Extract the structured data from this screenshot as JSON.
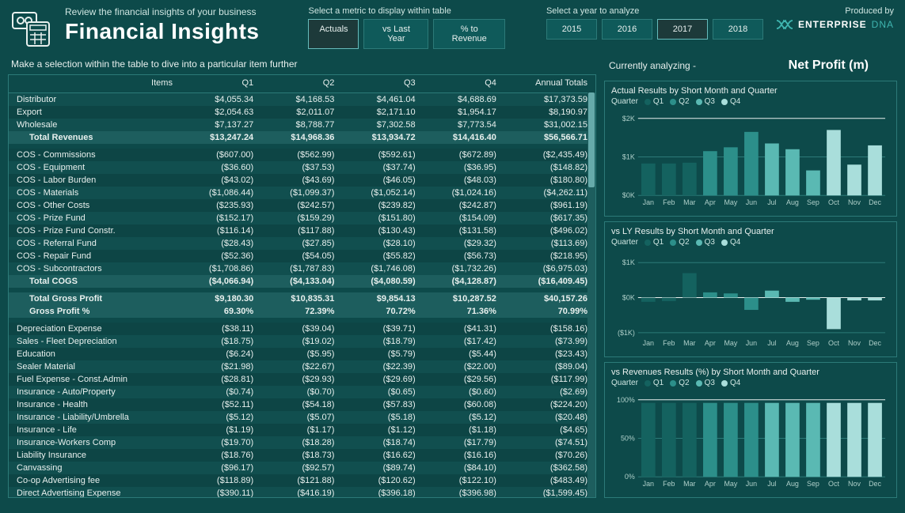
{
  "header": {
    "subtitle": "Review the financial insights of your business",
    "title": "Financial Insights",
    "metric_slicer": {
      "label": "Select a metric to display within table",
      "options": [
        "Actuals",
        "vs Last Year",
        "% to Revenue"
      ],
      "active_index": 0
    },
    "year_slicer": {
      "label": "Select a year to analyze",
      "options": [
        "2015",
        "2016",
        "2017",
        "2018"
      ],
      "active_index": 2
    },
    "produced_label": "Produced by",
    "brand_main": "ENTERPRISE",
    "brand_accent": "DNA"
  },
  "instruction": "Make a selection within the table to dive into a particular item further",
  "table": {
    "columns": [
      "Items",
      "Q1",
      "Q2",
      "Q3",
      "Q4",
      "Annual Totals"
    ],
    "rows": [
      {
        "type": "data",
        "cells": [
          "Distributor",
          "$4,055.34",
          "$4,168.53",
          "$4,461.04",
          "$4,688.69",
          "$17,373.59"
        ]
      },
      {
        "type": "data",
        "cells": [
          "Export",
          "$2,054.63",
          "$2,011.07",
          "$2,171.10",
          "$1,954.17",
          "$8,190.97"
        ]
      },
      {
        "type": "data",
        "cells": [
          "Wholesale",
          "$7,137.27",
          "$8,788.77",
          "$7,302.58",
          "$7,773.54",
          "$31,002.15"
        ]
      },
      {
        "type": "total",
        "cells": [
          "Total Revenues",
          "$13,247.24",
          "$14,968.36",
          "$13,934.72",
          "$14,416.40",
          "$56,566.71"
        ]
      },
      {
        "type": "gap"
      },
      {
        "type": "data",
        "cells": [
          "COS - Commissions",
          "($607.00)",
          "($562.99)",
          "($592.61)",
          "($672.89)",
          "($2,435.49)"
        ]
      },
      {
        "type": "data",
        "cells": [
          "COS - Equipment",
          "($36.60)",
          "($37.53)",
          "($37.74)",
          "($36.95)",
          "($148.82)"
        ]
      },
      {
        "type": "data",
        "cells": [
          "COS - Labor Burden",
          "($43.02)",
          "($43.69)",
          "($46.05)",
          "($48.03)",
          "($180.80)"
        ]
      },
      {
        "type": "data",
        "cells": [
          "COS - Materials",
          "($1,086.44)",
          "($1,099.37)",
          "($1,052.14)",
          "($1,024.16)",
          "($4,262.11)"
        ]
      },
      {
        "type": "data",
        "cells": [
          "COS - Other Costs",
          "($235.93)",
          "($242.57)",
          "($239.82)",
          "($242.87)",
          "($961.19)"
        ]
      },
      {
        "type": "data",
        "cells": [
          "COS - Prize Fund",
          "($152.17)",
          "($159.29)",
          "($151.80)",
          "($154.09)",
          "($617.35)"
        ]
      },
      {
        "type": "data",
        "cells": [
          "COS - Prize Fund Constr.",
          "($116.14)",
          "($117.88)",
          "($130.43)",
          "($131.58)",
          "($496.02)"
        ]
      },
      {
        "type": "data",
        "cells": [
          "COS - Referral Fund",
          "($28.43)",
          "($27.85)",
          "($28.10)",
          "($29.32)",
          "($113.69)"
        ]
      },
      {
        "type": "data",
        "cells": [
          "COS - Repair Fund",
          "($52.36)",
          "($54.05)",
          "($55.82)",
          "($56.73)",
          "($218.95)"
        ]
      },
      {
        "type": "data",
        "cells": [
          "COS - Subcontractors",
          "($1,708.86)",
          "($1,787.83)",
          "($1,746.08)",
          "($1,732.26)",
          "($6,975.03)"
        ]
      },
      {
        "type": "total",
        "cells": [
          "Total COGS",
          "($4,066.94)",
          "($4,133.04)",
          "($4,080.59)",
          "($4,128.87)",
          "($16,409.45)"
        ]
      },
      {
        "type": "gap"
      },
      {
        "type": "total",
        "cells": [
          "Total Gross Profit",
          "$9,180.30",
          "$10,835.31",
          "$9,854.13",
          "$10,287.52",
          "$40,157.26"
        ]
      },
      {
        "type": "total",
        "cells": [
          "Gross Profit %",
          "69.30%",
          "72.39%",
          "70.72%",
          "71.36%",
          "70.99%"
        ]
      },
      {
        "type": "gap"
      },
      {
        "type": "data",
        "cells": [
          "Depreciation Expense",
          "($38.11)",
          "($39.04)",
          "($39.71)",
          "($41.31)",
          "($158.16)"
        ]
      },
      {
        "type": "data",
        "cells": [
          "Sales - Fleet Depreciation",
          "($18.75)",
          "($19.02)",
          "($18.79)",
          "($17.42)",
          "($73.99)"
        ]
      },
      {
        "type": "data",
        "cells": [
          "Education",
          "($6.24)",
          "($5.95)",
          "($5.79)",
          "($5.44)",
          "($23.43)"
        ]
      },
      {
        "type": "data",
        "cells": [
          "Sealer Material",
          "($21.98)",
          "($22.67)",
          "($22.39)",
          "($22.00)",
          "($89.04)"
        ]
      },
      {
        "type": "data",
        "cells": [
          "Fuel Expense - Const.Admin",
          "($28.81)",
          "($29.93)",
          "($29.69)",
          "($29.56)",
          "($117.99)"
        ]
      },
      {
        "type": "data",
        "cells": [
          "Insurance - Auto/Property",
          "($0.74)",
          "($0.70)",
          "($0.65)",
          "($0.60)",
          "($2.69)"
        ]
      },
      {
        "type": "data",
        "cells": [
          "Insurance - Health",
          "($52.11)",
          "($54.18)",
          "($57.83)",
          "($60.08)",
          "($224.20)"
        ]
      },
      {
        "type": "data",
        "cells": [
          "Insurance - Liability/Umbrella",
          "($5.12)",
          "($5.07)",
          "($5.18)",
          "($5.12)",
          "($20.48)"
        ]
      },
      {
        "type": "data",
        "cells": [
          "Insurance - Life",
          "($1.19)",
          "($1.17)",
          "($1.12)",
          "($1.18)",
          "($4.65)"
        ]
      },
      {
        "type": "data",
        "cells": [
          "Insurance-Workers Comp",
          "($19.70)",
          "($18.28)",
          "($18.74)",
          "($17.79)",
          "($74.51)"
        ]
      },
      {
        "type": "data",
        "cells": [
          "Liability Insurance",
          "($18.76)",
          "($18.73)",
          "($16.62)",
          "($16.16)",
          "($70.26)"
        ]
      },
      {
        "type": "data",
        "cells": [
          "Canvassing",
          "($96.17)",
          "($92.57)",
          "($89.74)",
          "($84.10)",
          "($362.58)"
        ]
      },
      {
        "type": "data",
        "cells": [
          "Co-op Advertising fee",
          "($118.89)",
          "($121.88)",
          "($120.62)",
          "($122.10)",
          "($483.49)"
        ]
      },
      {
        "type": "data",
        "cells": [
          "Direct Advertising Expense",
          "($390.11)",
          "($416.19)",
          "($396.18)",
          "($396.98)",
          "($1,599.45)"
        ]
      }
    ]
  },
  "analyzing": {
    "label": "Currently analyzing -",
    "value": "Net Profit (m)"
  },
  "quarter_colors": [
    "#14625f",
    "#2c8f8a",
    "#5ab9b3",
    "#a9dedb"
  ],
  "legend_prefix": "Quarter",
  "legend_items": [
    "Q1",
    "Q2",
    "Q3",
    "Q4"
  ],
  "charts": {
    "actual": {
      "title": "Actual Results by Short Month and Quarter",
      "y_ticks": [
        0,
        1000,
        2000
      ],
      "y_labels": [
        "$0K",
        "$1K",
        "$2K"
      ],
      "ylim": [
        0,
        2000
      ],
      "months": [
        "Jan",
        "Feb",
        "Mar",
        "Apr",
        "May",
        "Jun",
        "Jul",
        "Aug",
        "Sep",
        "Oct",
        "Nov",
        "Dec"
      ],
      "values": [
        830,
        830,
        850,
        1150,
        1250,
        1650,
        1350,
        1200,
        650,
        1700,
        800,
        1300
      ],
      "quarters": [
        0,
        0,
        0,
        1,
        1,
        1,
        2,
        2,
        2,
        3,
        3,
        3
      ],
      "background_color": "#0d4a4a",
      "grid_color": "#2c7a78",
      "bar_width": 0.68
    },
    "vsly": {
      "title": "vs LY Results by Short Month and Quarter",
      "y_ticks": [
        -1000,
        0,
        1000
      ],
      "y_labels": [
        "($1K)",
        "$0K",
        "$1K"
      ],
      "ylim": [
        -1100,
        1100
      ],
      "months": [
        "Jan",
        "Feb",
        "Mar",
        "Apr",
        "May",
        "Jun",
        "Jul",
        "Aug",
        "Sep",
        "Oct",
        "Nov",
        "Dec"
      ],
      "values": [
        -120,
        -100,
        700,
        150,
        120,
        -350,
        200,
        -120,
        -60,
        -900,
        -80,
        -80
      ],
      "quarters": [
        0,
        0,
        0,
        1,
        1,
        1,
        2,
        2,
        2,
        3,
        3,
        3
      ],
      "background_color": "#0d4a4a",
      "grid_color": "#2c7a78",
      "bar_width": 0.68
    },
    "vsrev": {
      "title": "vs Revenues Results (%) by Short Month and Quarter",
      "y_ticks": [
        0,
        50,
        100
      ],
      "y_labels": [
        "0%",
        "50%",
        "100%"
      ],
      "ylim": [
        0,
        100
      ],
      "months": [
        "Jan",
        "Feb",
        "Mar",
        "Apr",
        "May",
        "Jun",
        "Jul",
        "Aug",
        "Sep",
        "Oct",
        "Nov",
        "Dec"
      ],
      "values": [
        96,
        96,
        96,
        96,
        96,
        96,
        96,
        96,
        96,
        96,
        96,
        96
      ],
      "quarters": [
        0,
        0,
        0,
        1,
        1,
        1,
        2,
        2,
        2,
        3,
        3,
        3
      ],
      "background_color": "#0d4a4a",
      "grid_color": "#2c7a78",
      "bar_width": 0.68
    }
  },
  "style": {
    "page_bg": "#0d4a4a",
    "text_color": "#e8f0ee",
    "accent": "#3fb5b0",
    "zebra_a": "#114f4f",
    "zebra_b": "#0d4545",
    "total_bg": "#1d5e5e",
    "border": "#2c7a78",
    "font_family": "Segoe UI",
    "title_fontsize": 28,
    "body_fontsize": 11
  }
}
